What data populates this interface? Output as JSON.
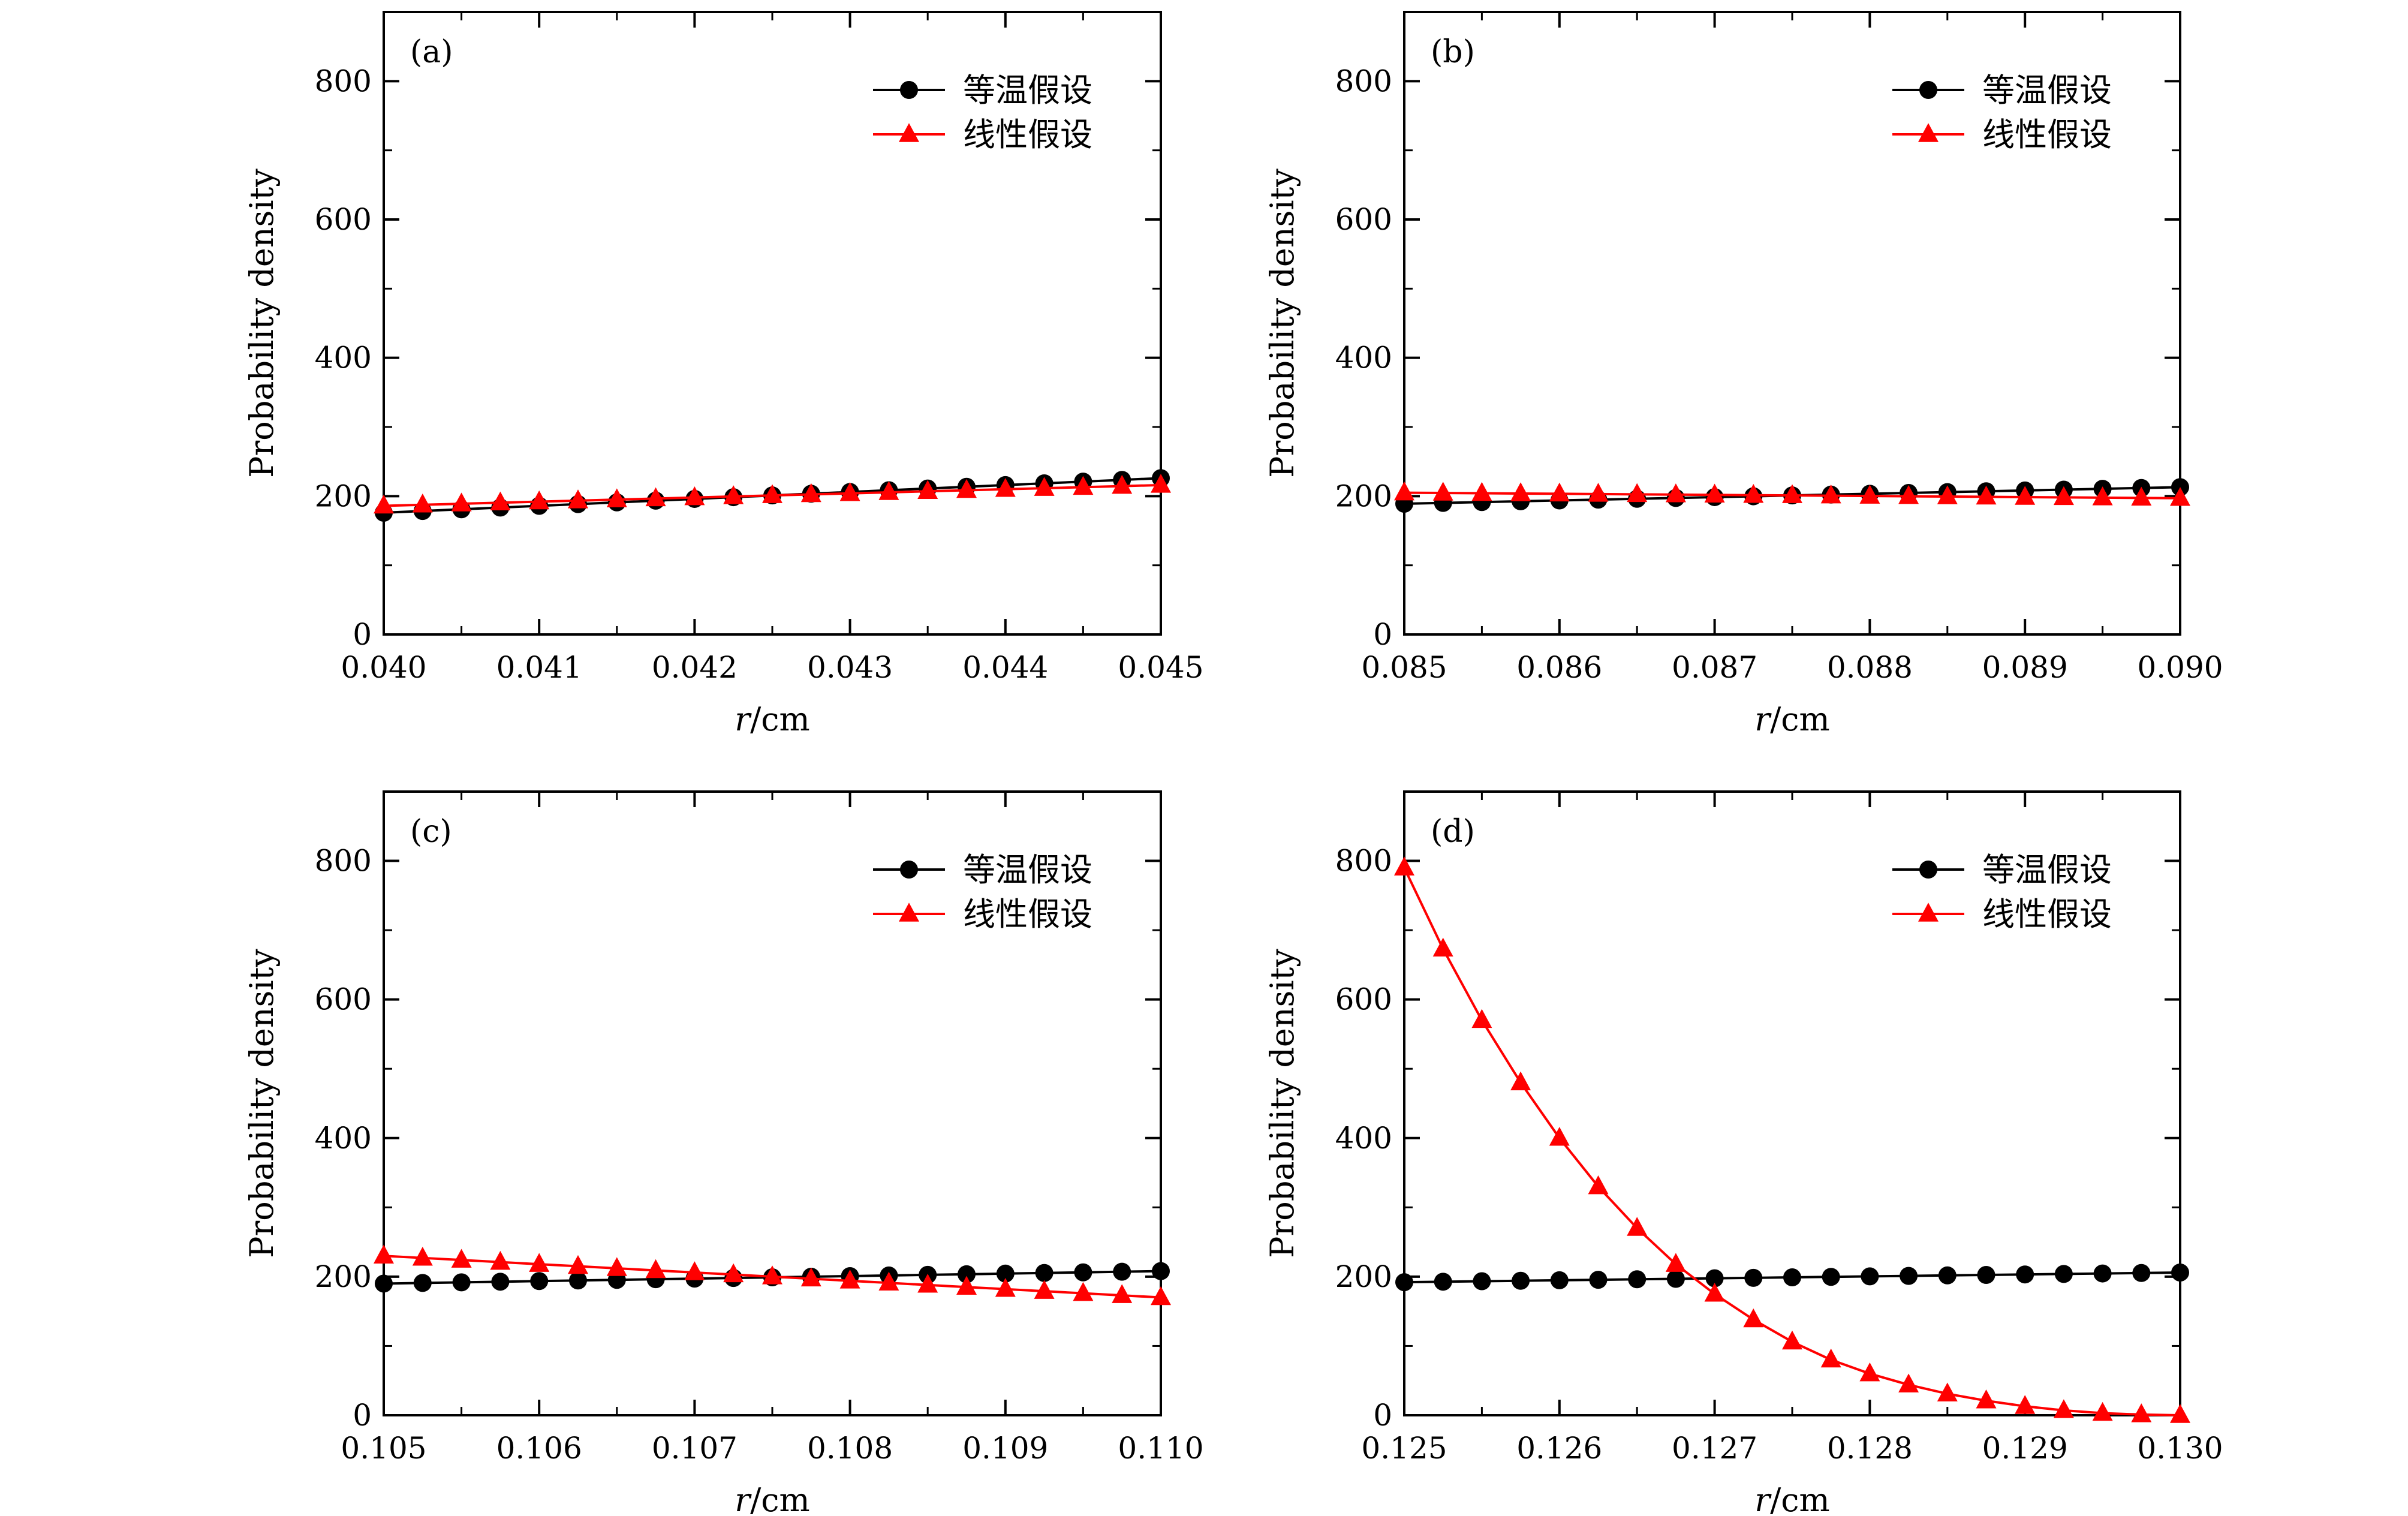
{
  "chart_data": [
    {
      "type": "line",
      "panel_label": "(a)",
      "xlabel": "r/cm",
      "ylabel": "Probability density",
      "xlim": [
        0.04,
        0.045
      ],
      "ylim": [
        0,
        900
      ],
      "xticks": [
        0.04,
        0.041,
        0.042,
        0.043,
        0.044,
        0.045
      ],
      "xtick_labels": [
        "0.040",
        "0.041",
        "0.042",
        "0.043",
        "0.044",
        "0.045"
      ],
      "yticks": [
        0,
        200,
        400,
        600,
        800
      ],
      "ytick_labels": [
        "0",
        "200",
        "400",
        "600",
        "800"
      ],
      "legend_position": "top-right",
      "x": [
        0.04,
        0.04025,
        0.0405,
        0.04075,
        0.041,
        0.04125,
        0.0415,
        0.04175,
        0.042,
        0.04225,
        0.0425,
        0.04275,
        0.043,
        0.04325,
        0.0435,
        0.04375,
        0.044,
        0.04425,
        0.0445,
        0.04475,
        0.045
      ],
      "series": [
        {
          "name": "等温假设",
          "color": "#000000",
          "marker": "circle",
          "values": [
            176,
            178.5,
            181,
            183.5,
            186,
            188.5,
            191,
            193.5,
            196,
            198.5,
            201,
            203.5,
            206,
            208.5,
            211,
            213.5,
            216,
            218.5,
            221,
            223.5,
            226
          ]
        },
        {
          "name": "线性假设",
          "color": "#ff0000",
          "marker": "triangle",
          "values": [
            186,
            187.5,
            189,
            190.5,
            192,
            193.5,
            195,
            196.5,
            198,
            199.5,
            201,
            202.5,
            204,
            205.5,
            207,
            208.5,
            210,
            211.5,
            213,
            214.5,
            216
          ]
        }
      ]
    },
    {
      "type": "line",
      "panel_label": "(b)",
      "xlabel": "r/cm",
      "ylabel": "Probability density",
      "xlim": [
        0.085,
        0.09
      ],
      "ylim": [
        0,
        900
      ],
      "xticks": [
        0.085,
        0.086,
        0.087,
        0.088,
        0.089,
        0.09
      ],
      "xtick_labels": [
        "0.085",
        "0.086",
        "0.087",
        "0.088",
        "0.089",
        "0.090"
      ],
      "yticks": [
        0,
        200,
        400,
        600,
        800
      ],
      "ytick_labels": [
        "0",
        "200",
        "400",
        "600",
        "800"
      ],
      "legend_position": "top-right",
      "x": [
        0.085,
        0.08525,
        0.0855,
        0.08575,
        0.086,
        0.08625,
        0.0865,
        0.08675,
        0.087,
        0.08725,
        0.0875,
        0.08775,
        0.088,
        0.08825,
        0.0885,
        0.08875,
        0.089,
        0.08925,
        0.0895,
        0.08975,
        0.09
      ],
      "series": [
        {
          "name": "等温假设",
          "color": "#000000",
          "marker": "circle",
          "values": [
            189,
            190.2,
            191.4,
            192.6,
            193.8,
            195,
            196.2,
            197.4,
            198.6,
            199.8,
            201,
            202.2,
            203.4,
            204.6,
            205.8,
            207,
            208.2,
            209.4,
            210.6,
            211.8,
            213
          ]
        },
        {
          "name": "线性假设",
          "color": "#ff0000",
          "marker": "triangle",
          "values": [
            205,
            204.6,
            204.2,
            203.8,
            203.4,
            203,
            202.6,
            202.2,
            201.8,
            201.4,
            201,
            200.6,
            200.2,
            199.8,
            199.4,
            199,
            198.6,
            198.2,
            197.8,
            197.4,
            197
          ]
        }
      ]
    },
    {
      "type": "line",
      "panel_label": "(c)",
      "xlabel": "r/cm",
      "ylabel": "Probability density",
      "xlim": [
        0.105,
        0.11
      ],
      "ylim": [
        0,
        900
      ],
      "xticks": [
        0.105,
        0.106,
        0.107,
        0.108,
        0.109,
        0.11
      ],
      "xtick_labels": [
        "0.105",
        "0.106",
        "0.107",
        "0.108",
        "0.109",
        "0.110"
      ],
      "yticks": [
        0,
        200,
        400,
        600,
        800
      ],
      "ytick_labels": [
        "0",
        "200",
        "400",
        "600",
        "800"
      ],
      "legend_position": "top-right",
      "x": [
        0.105,
        0.10525,
        0.1055,
        0.10575,
        0.106,
        0.10625,
        0.1065,
        0.10675,
        0.107,
        0.10725,
        0.1075,
        0.10775,
        0.108,
        0.10825,
        0.1085,
        0.10875,
        0.109,
        0.10925,
        0.1095,
        0.10975,
        0.11
      ],
      "series": [
        {
          "name": "等温假设",
          "color": "#000000",
          "marker": "circle",
          "values": [
            190,
            190.9,
            191.8,
            192.7,
            193.6,
            194.5,
            195.4,
            196.3,
            197.2,
            198.1,
            199,
            199.9,
            200.8,
            201.7,
            202.6,
            203.5,
            204.4,
            205.3,
            206.2,
            207.1,
            208
          ]
        },
        {
          "name": "线性假设",
          "color": "#ff0000",
          "marker": "triangle",
          "values": [
            230,
            227,
            224,
            221,
            218,
            215,
            212,
            209,
            206,
            203,
            200,
            197,
            194,
            191,
            188,
            185,
            182,
            179,
            176,
            173,
            170
          ]
        }
      ]
    },
    {
      "type": "line",
      "panel_label": "(d)",
      "xlabel": "r/cm",
      "ylabel": "Probability density",
      "xlim": [
        0.125,
        0.13
      ],
      "ylim": [
        0,
        900
      ],
      "xticks": [
        0.125,
        0.126,
        0.127,
        0.128,
        0.129,
        0.13
      ],
      "xtick_labels": [
        "0.125",
        "0.126",
        "0.127",
        "0.128",
        "0.129",
        "0.130"
      ],
      "yticks": [
        0,
        200,
        400,
        600,
        800
      ],
      "ytick_labels": [
        "0",
        "200",
        "400",
        "600",
        "800"
      ],
      "legend_position": "top-right",
      "x": [
        0.125,
        0.12525,
        0.1255,
        0.12575,
        0.126,
        0.12625,
        0.1265,
        0.12675,
        0.127,
        0.12725,
        0.1275,
        0.12775,
        0.128,
        0.12825,
        0.1285,
        0.12875,
        0.129,
        0.12925,
        0.1295,
        0.12975,
        0.13
      ],
      "series": [
        {
          "name": "等温假设",
          "color": "#000000",
          "marker": "circle",
          "values": [
            192,
            192.7,
            193.4,
            194.1,
            194.8,
            195.5,
            196.2,
            196.9,
            197.6,
            198.3,
            199,
            199.7,
            200.4,
            201.1,
            201.8,
            202.5,
            203.2,
            203.9,
            204.6,
            205.3,
            206
          ]
        },
        {
          "name": "线性假设",
          "color": "#ff0000",
          "marker": "triangle",
          "values": [
            790,
            673,
            570,
            480,
            400,
            330,
            270,
            218,
            175,
            138,
            106,
            80,
            60,
            44,
            31,
            21,
            13,
            7,
            3,
            1,
            0
          ]
        }
      ]
    }
  ]
}
